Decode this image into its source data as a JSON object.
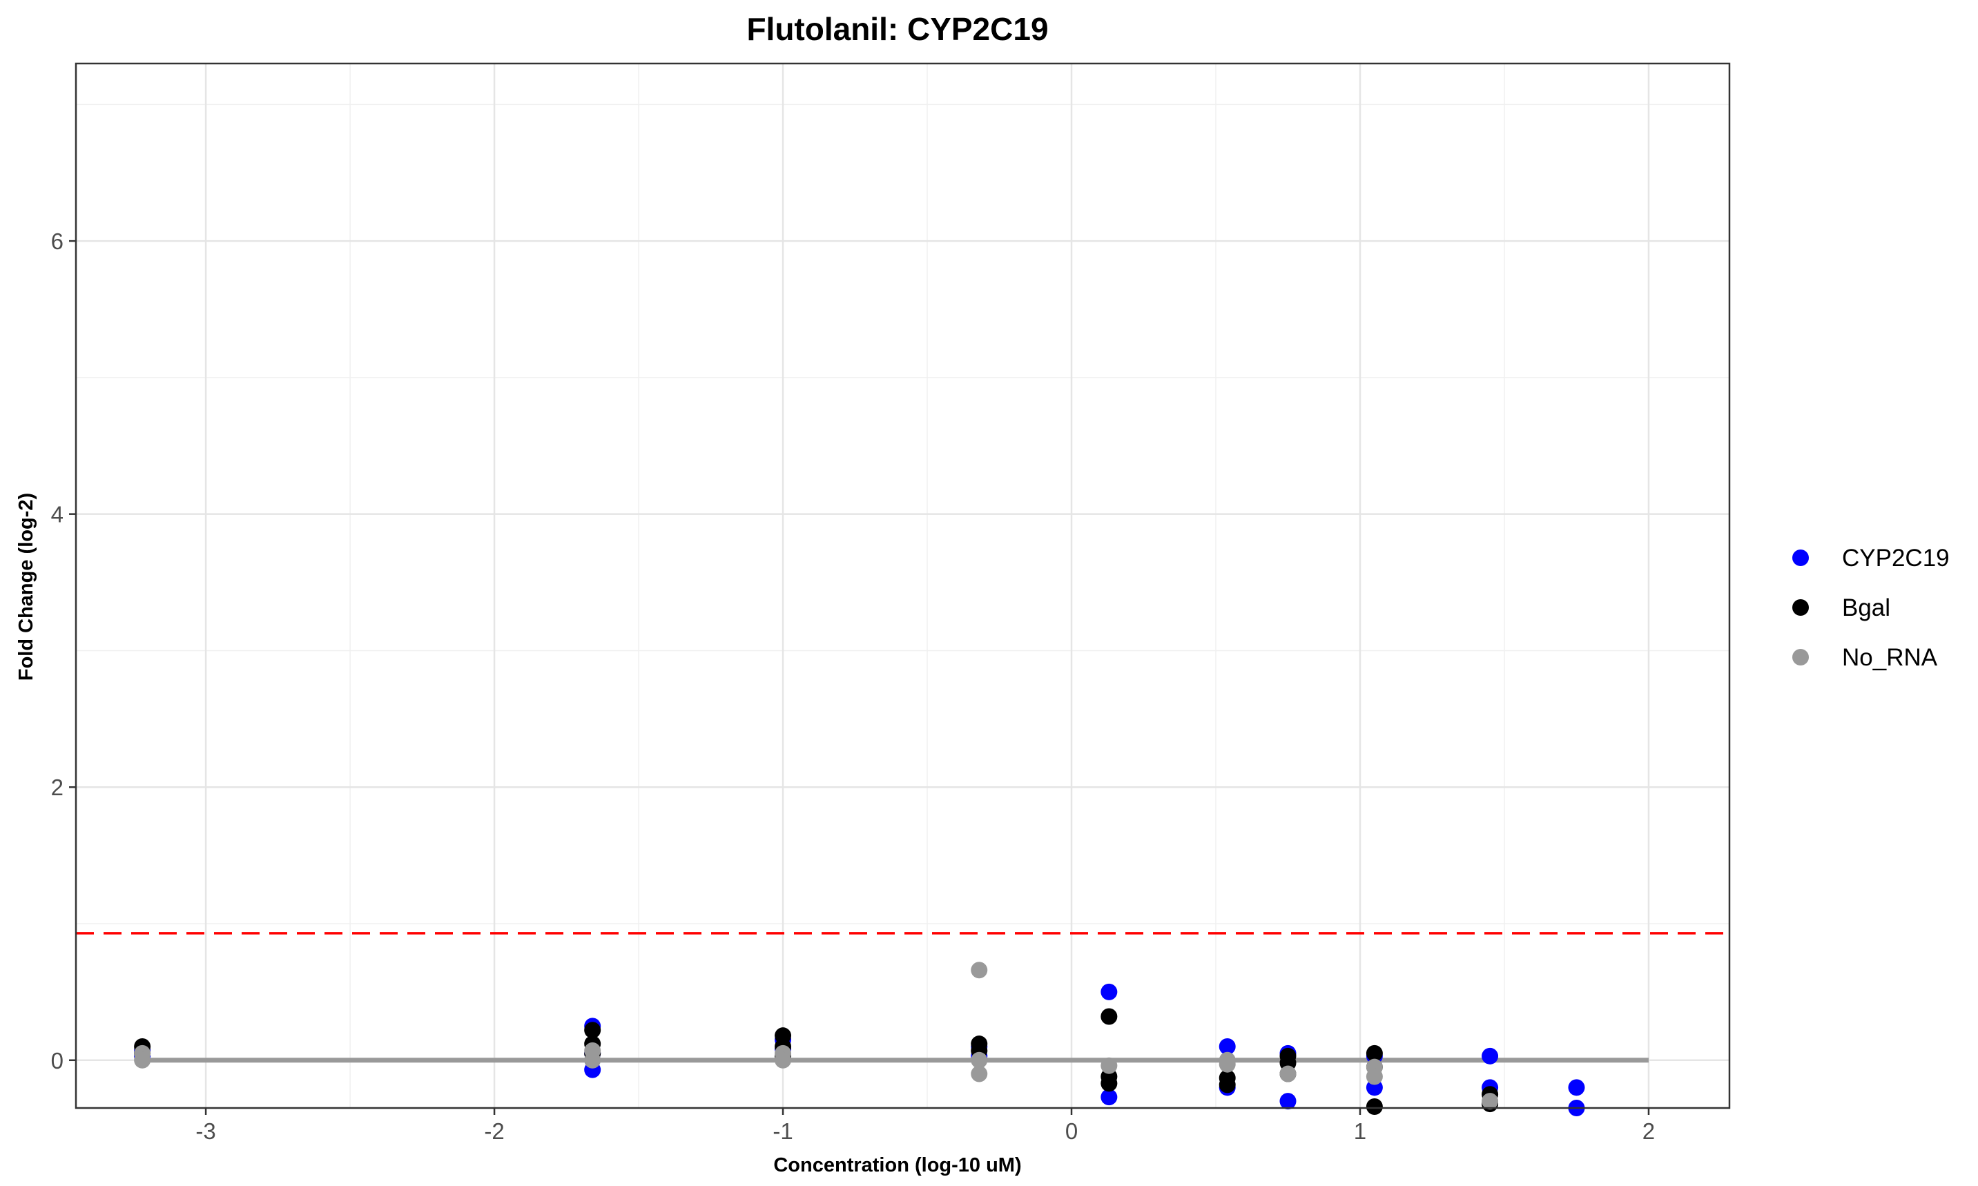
{
  "chart_data": {
    "type": "scatter",
    "title": "Flutolanil: CYP2C19",
    "xlabel": "Concentration (log-10 uM)",
    "ylabel": "Fold Change (log-2)",
    "xlim": [
      -3.45,
      2.28
    ],
    "ylim": [
      -0.35,
      7.3
    ],
    "x_ticks": [
      -3,
      -2,
      -1,
      0,
      1,
      2
    ],
    "y_ticks": [
      0,
      2,
      4,
      6
    ],
    "x_tick_labels": [
      "-3",
      "-2",
      "-1",
      "0",
      "1",
      "2"
    ],
    "y_tick_labels": [
      "0",
      "2",
      "4",
      "6"
    ],
    "grid": true,
    "legend_position": "right",
    "threshold_line": {
      "y": 0.93,
      "color": "#ff0000",
      "style": "dashed"
    },
    "baseline_line": {
      "x": [
        -3.22,
        2.0
      ],
      "y": 0,
      "color": "#999999"
    },
    "series": [
      {
        "name": "CYP2C19",
        "color": "#0000ff",
        "points": [
          [
            -3.22,
            0.07
          ],
          [
            -3.22,
            0.03
          ],
          [
            -1.66,
            0.25
          ],
          [
            -1.66,
            0.05
          ],
          [
            -1.66,
            -0.07
          ],
          [
            -1.0,
            0.15
          ],
          [
            -1.0,
            0.08
          ],
          [
            -0.32,
            0.1
          ],
          [
            -0.32,
            0.03
          ],
          [
            0.13,
            0.5
          ],
          [
            0.13,
            -0.27
          ],
          [
            0.54,
            0.1
          ],
          [
            0.54,
            -0.2
          ],
          [
            0.75,
            0.05
          ],
          [
            0.75,
            -0.3
          ],
          [
            1.05,
            0.03
          ],
          [
            1.05,
            -0.2
          ],
          [
            1.45,
            0.03
          ],
          [
            1.45,
            -0.2
          ],
          [
            1.75,
            -0.2
          ],
          [
            1.75,
            -0.35
          ]
        ]
      },
      {
        "name": "Bgal",
        "color": "#000000",
        "points": [
          [
            -3.22,
            0.1
          ],
          [
            -3.22,
            0.05
          ],
          [
            -1.66,
            0.22
          ],
          [
            -1.66,
            0.12
          ],
          [
            -1.66,
            0.05
          ],
          [
            -1.0,
            0.18
          ],
          [
            -1.0,
            0.1
          ],
          [
            -1.0,
            0.03
          ],
          [
            -0.32,
            0.12
          ],
          [
            -0.32,
            0.07
          ],
          [
            0.13,
            0.32
          ],
          [
            0.13,
            -0.12
          ],
          [
            0.13,
            -0.17
          ],
          [
            0.54,
            -0.13
          ],
          [
            0.54,
            -0.18
          ],
          [
            0.75,
            0.03
          ],
          [
            0.75,
            -0.02
          ],
          [
            0.75,
            -0.1
          ],
          [
            1.05,
            0.05
          ],
          [
            1.05,
            -0.05
          ],
          [
            1.05,
            -0.34
          ],
          [
            1.45,
            -0.25
          ],
          [
            1.45,
            -0.32
          ]
        ]
      },
      {
        "name": "No_RNA",
        "color": "#999999",
        "points": [
          [
            -3.22,
            0.05
          ],
          [
            -3.22,
            0.0
          ],
          [
            -1.66,
            0.07
          ],
          [
            -1.66,
            0.0
          ],
          [
            -1.0,
            0.05
          ],
          [
            -1.0,
            0.0
          ],
          [
            -0.32,
            0.66
          ],
          [
            -0.32,
            0.0
          ],
          [
            -0.32,
            -0.1
          ],
          [
            0.13,
            -0.04
          ],
          [
            0.54,
            0.0
          ],
          [
            0.54,
            -0.03
          ],
          [
            0.75,
            -0.1
          ],
          [
            1.05,
            -0.05
          ],
          [
            1.05,
            -0.12
          ],
          [
            1.45,
            -0.3
          ]
        ]
      }
    ]
  }
}
